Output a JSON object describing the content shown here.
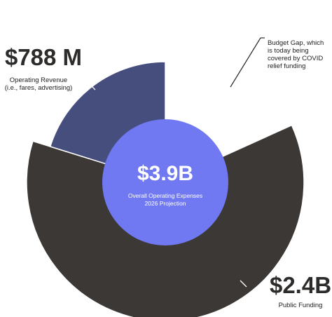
{
  "chart_data": {
    "type": "pie",
    "title": "",
    "total": {
      "value_label": "$3.9B",
      "caption_line1": "Overall Operating Expenses",
      "caption_line2": "2026 Projection"
    },
    "slices": [
      {
        "key": "operating_revenue",
        "value": 0.788,
        "value_label": "$788 M",
        "caption_line1": "Operating Revenue",
        "caption_line2": "(i.e., fares, advertising)",
        "color": "#464e7d"
      },
      {
        "key": "public_funding",
        "value": 2.4,
        "value_label": "$2.4B",
        "caption_line1": "Public Funding",
        "caption_line2": "",
        "color": "#3b3835"
      },
      {
        "key": "budget_gap",
        "value": 0.712,
        "value_label": "",
        "caption_line1": "Budget Gap, which",
        "caption_line2": "is today being",
        "caption_line3": "covered by COVID",
        "caption_line4": "relief funding",
        "color": "#ffffff"
      }
    ],
    "center_color": "#7079f2",
    "value_units": "billions USD"
  }
}
